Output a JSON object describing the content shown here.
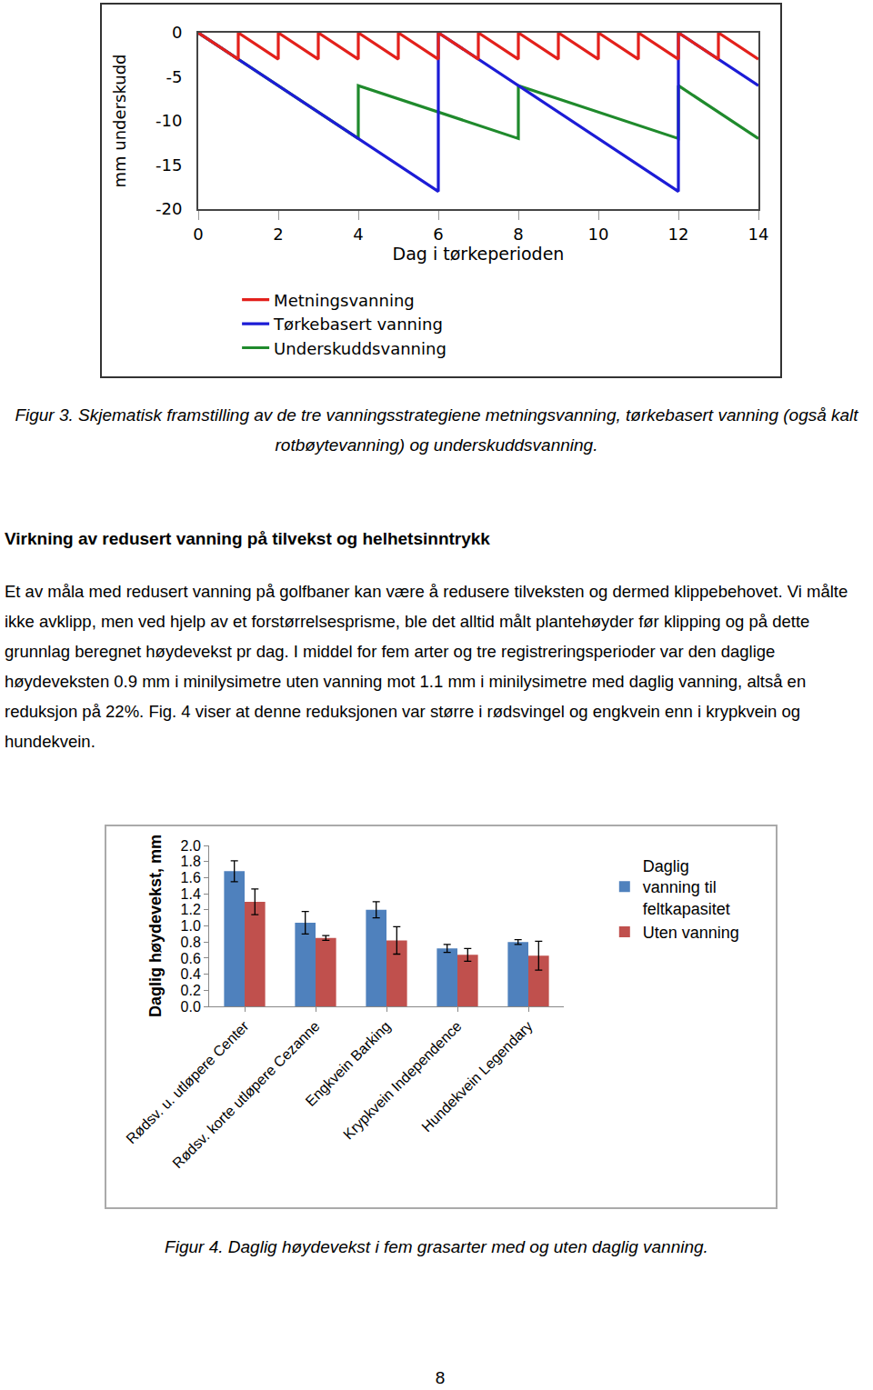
{
  "chart_data": [
    {
      "type": "line",
      "xlabel": "Dag i tørkeperioden",
      "ylabel": "mm underskudd",
      "xlim": [
        0,
        14
      ],
      "xticks": [
        0,
        2,
        4,
        6,
        8,
        10,
        12,
        14
      ],
      "ylim": [
        -20,
        0
      ],
      "yticks": [
        0,
        -5,
        -10,
        -15,
        -20
      ],
      "grid": false,
      "legend": "bottom",
      "series": [
        {
          "name": "Metningsvanning",
          "color": "#e3201b",
          "x": [
            0,
            1,
            1,
            2,
            2,
            3,
            3,
            4,
            4,
            5,
            5,
            6,
            6,
            7,
            7,
            8,
            8,
            9,
            9,
            10,
            10,
            11,
            11,
            12,
            12,
            13,
            13,
            14
          ],
          "values": [
            0,
            -3,
            0,
            -3,
            0,
            -3,
            0,
            -3,
            0,
            -3,
            0,
            -3,
            0,
            -3,
            0,
            -3,
            0,
            -3,
            0,
            -3,
            0,
            -3,
            0,
            -3,
            0,
            -3,
            0,
            -3
          ]
        },
        {
          "name": "Tørkebasert vanning",
          "color": "#1c1cd6",
          "x": [
            0,
            6,
            6,
            12,
            12,
            14
          ],
          "values": [
            0,
            -18,
            0,
            -18,
            0,
            -6
          ]
        },
        {
          "name": "Underskuddsvanning",
          "color": "#1f8a2c",
          "x": [
            0,
            4,
            4,
            8,
            8,
            12,
            12,
            14
          ],
          "values": [
            0,
            -12,
            -6,
            -12,
            -6,
            -12,
            -6,
            -12
          ]
        }
      ]
    },
    {
      "type": "bar",
      "ylabel": "Daglig høydevekst, mm",
      "categories": [
        "Rødsv. u. utløpere Center",
        "Rødsv. korte utløpere Cezanne",
        "Engkvein Barking",
        "Krypkvein Independence",
        "Hundekvein Legendary"
      ],
      "ylim": [
        0,
        2
      ],
      "yticks": [
        {
          "value": 0,
          "label": "0.0"
        },
        0.2,
        0.4,
        0.6,
        0.8,
        {
          "value": 1,
          "label": "1.0"
        },
        1.2,
        1.4,
        1.6,
        1.8,
        {
          "value": 2,
          "label": "2.0"
        }
      ],
      "grid": false,
      "legend": "right",
      "series": [
        {
          "name": "Daglig vanning til feltkapasitet",
          "color": "#4f81bd",
          "values": [
            1.68,
            1.04,
            1.2,
            0.72,
            0.8
          ],
          "errors": [
            0.13,
            0.14,
            0.1,
            0.05,
            0.03
          ]
        },
        {
          "name": "Uten vanning",
          "color": "#c0504d",
          "values": [
            1.3,
            0.85,
            0.82,
            0.64,
            0.63
          ],
          "errors": [
            0.16,
            0.03,
            0.17,
            0.08,
            0.18
          ]
        }
      ]
    }
  ],
  "document": {
    "figure3_caption": "Figur 3. Skjematisk framstilling av de tre vanningsstrategiene metningsvanning, tørkebasert vanning (også kalt rotbøytevanning) og underskuddsvanning.",
    "heading": "Virkning av redusert vanning på tilvekst og helhetsinntrykk",
    "paragraph": "Et av måla med redusert vanning på golfbaner kan være å redusere tilveksten og dermed klippebehovet. Vi målte ikke avklipp, men ved hjelp av et forstørrelsesprisme, ble det alltid målt plantehøyder før klipping og på dette grunnlag beregnet høydevekst pr dag. I middel for fem arter og tre registreringsperioder var den daglige høydeveksten 0.9 mm i minilysimetre uten vanning mot 1.1 mm i minilysimetre med daglig vanning, altså en reduksjon på 22%. Fig. 4 viser at denne reduksjonen var større i rødsvingel og engkvein enn i krypkvein og hundekvein.",
    "figure4_caption": "Figur 4. Daglig høydevekst i fem grasarter med og uten daglig vanning.",
    "page_number": 8
  }
}
